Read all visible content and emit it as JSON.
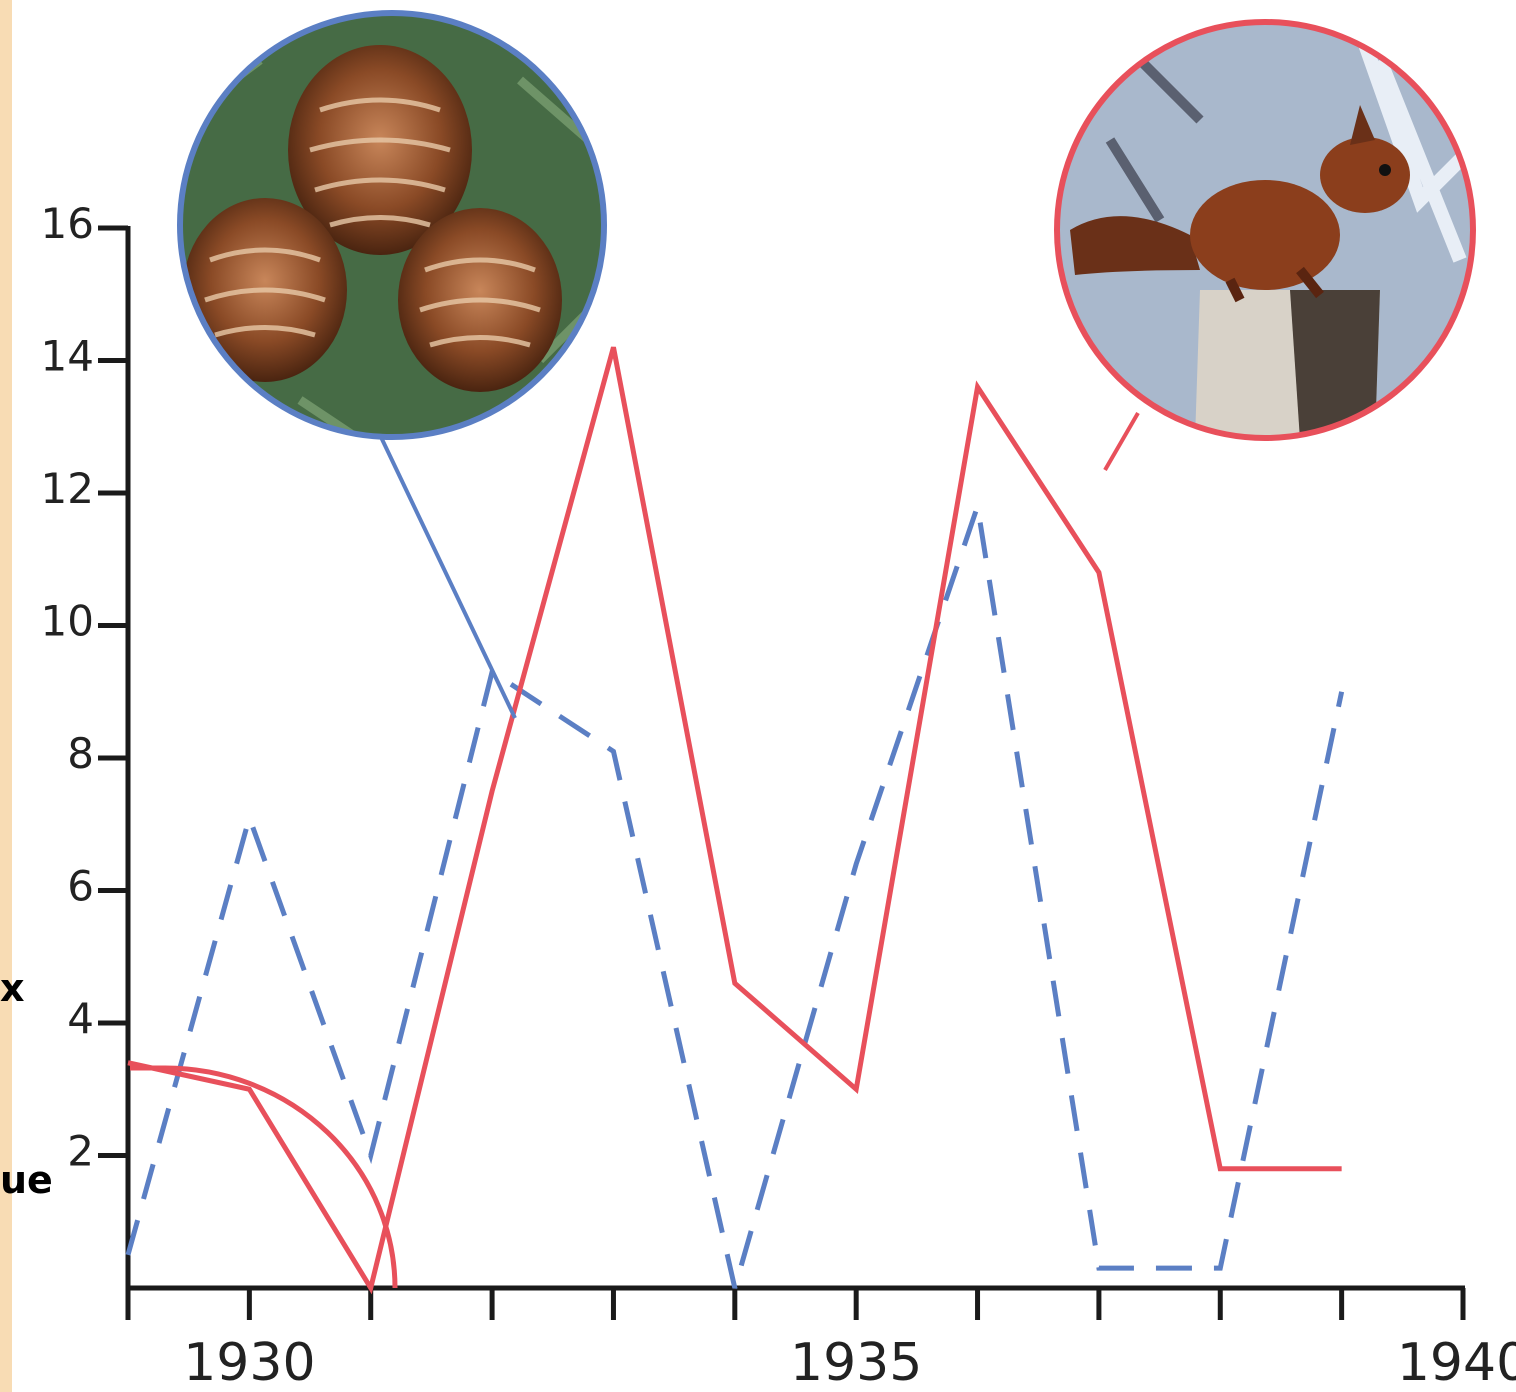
{
  "side_labels": [
    "x",
    "ue"
  ],
  "colors": {
    "cones": "#5b7fc4",
    "squirrels": "#e8505b",
    "axis": "#1a1a1a",
    "strip": "#f8dcb4"
  },
  "icons": {
    "cones_photo": "pine-cone-photo",
    "squirrel_photo": "red-squirrel-photo"
  },
  "chart_data": {
    "type": "line",
    "title": "",
    "xlabel": "",
    "ylabel": "",
    "xlim": [
      1929,
      1940
    ],
    "ylim": [
      0,
      16
    ],
    "yticks": [
      2,
      4,
      6,
      8,
      10,
      12,
      14,
      16
    ],
    "xticks": [
      1929,
      1930,
      1931,
      1932,
      1933,
      1934,
      1935,
      1936,
      1937,
      1938,
      1939,
      1940
    ],
    "xtick_labels": [
      {
        "x": 1930,
        "label": "1930"
      },
      {
        "x": 1935,
        "label": "1935"
      },
      {
        "x": 1940,
        "label": "1940"
      }
    ],
    "grid": false,
    "series": [
      {
        "style": "dashed",
        "color": "#5b7fc4",
        "x": [
          1929,
          1930,
          1931,
          1932,
          1933,
          1934,
          1935,
          1936,
          1937,
          1938,
          1939,
          1940
        ],
        "y": [
          0.5,
          7.1,
          2.0,
          9.3,
          8.1,
          0.0,
          6.4,
          11.8,
          0.3,
          0.3,
          9.0,
          null
        ]
      },
      {
        "style": "solid",
        "color": "#e8505b",
        "x": [
          1929,
          1930,
          1931,
          1932,
          1933,
          1934,
          1935,
          1936,
          1937,
          1938,
          1939,
          1940
        ],
        "y": [
          3.4,
          3.0,
          0.0,
          7.5,
          14.2,
          4.6,
          3.0,
          13.6,
          10.8,
          1.8,
          1.8,
          null
        ]
      }
    ]
  }
}
